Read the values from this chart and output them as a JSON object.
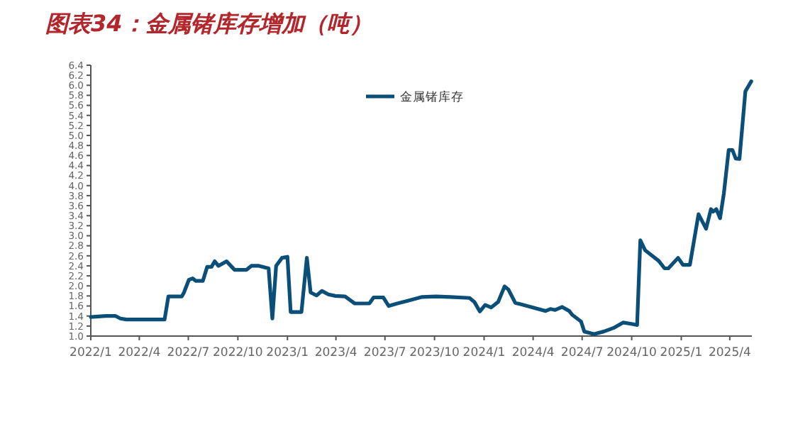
{
  "chart_data": {
    "type": "line",
    "title": "图表34：金属锗库存增加（吨）",
    "legend": "top",
    "xlim": [
      "2022-01-01",
      "2025-05-12"
    ],
    "xticks": [
      {
        "value": "2022-01-01",
        "label": "2022/1"
      },
      {
        "value": "2022-04-01",
        "label": "2022/4"
      },
      {
        "value": "2022-07-01",
        "label": "2022/7"
      },
      {
        "value": "2022-10-01",
        "label": "2022/10"
      },
      {
        "value": "2023-01-01",
        "label": "2023/1"
      },
      {
        "value": "2023-04-01",
        "label": "2023/4"
      },
      {
        "value": "2023-07-01",
        "label": "2023/7"
      },
      {
        "value": "2023-10-01",
        "label": "2023/10"
      },
      {
        "value": "2024-01-01",
        "label": "2024/1"
      },
      {
        "value": "2024-04-01",
        "label": "2024/4"
      },
      {
        "value": "2024-07-01",
        "label": "2024/7"
      },
      {
        "value": "2024-10-01",
        "label": "2024/10"
      },
      {
        "value": "2025-01-01",
        "label": "2025/1"
      },
      {
        "value": "2025-04-01",
        "label": "2025/4"
      }
    ],
    "ylim": [
      1.0,
      6.4
    ],
    "yticks": [
      {
        "value": 1.0,
        "label": "1.0"
      },
      {
        "value": 1.2,
        "label": "1.2"
      },
      {
        "value": 1.4,
        "label": "1.4"
      },
      {
        "value": 1.6,
        "label": "1.6"
      },
      {
        "value": 1.8,
        "label": "1.8"
      },
      {
        "value": 2.0,
        "label": "2.0"
      },
      {
        "value": 2.2,
        "label": "2.2"
      },
      {
        "value": 2.4,
        "label": "2.4"
      },
      {
        "value": 2.6,
        "label": "2.6"
      },
      {
        "value": 2.8,
        "label": "2.8"
      },
      {
        "value": 3.0,
        "label": "3.0"
      },
      {
        "value": 3.2,
        "label": "3.2"
      },
      {
        "value": 3.4,
        "label": "3.4"
      },
      {
        "value": 3.6,
        "label": "3.6"
      },
      {
        "value": 3.8,
        "label": "3.8"
      },
      {
        "value": 4.0,
        "label": "4.0"
      },
      {
        "value": 4.2,
        "label": "4.2"
      },
      {
        "value": 4.4,
        "label": "4.4"
      },
      {
        "value": 4.6,
        "label": "4.6"
      },
      {
        "value": 4.8,
        "label": "4.8"
      },
      {
        "value": 5.0,
        "label": "5.0"
      },
      {
        "value": 5.2,
        "label": "5.2"
      },
      {
        "value": 5.4,
        "label": "5.4"
      },
      {
        "value": 5.6,
        "label": "5.6"
      },
      {
        "value": 5.8,
        "label": "5.8"
      },
      {
        "value": 6.0,
        "label": "6.0"
      },
      {
        "value": 6.2,
        "label": "6.2"
      },
      {
        "value": 6.4,
        "label": "6.4"
      }
    ],
    "series": [
      {
        "name": "金属锗库存",
        "color": "#0b4f79",
        "x": [
          "2022-01-01",
          "2022-01-29",
          "2022-02-16",
          "2022-02-25",
          "2022-03-08",
          "2022-05-18",
          "2022-05-25",
          "2022-06-19",
          "2022-06-23",
          "2022-07-02",
          "2022-07-09",
          "2022-07-15",
          "2022-07-28",
          "2022-08-05",
          "2022-08-13",
          "2022-08-19",
          "2022-08-26",
          "2022-09-10",
          "2022-09-25",
          "2022-10-17",
          "2022-10-26",
          "2022-11-09",
          "2022-11-27",
          "2022-12-04",
          "2022-12-11",
          "2022-12-22",
          "2023-01-01",
          "2023-01-07",
          "2023-01-27",
          "2023-02-06",
          "2023-02-13",
          "2023-02-24",
          "2023-03-06",
          "2023-03-18",
          "2023-03-31",
          "2023-04-18",
          "2023-05-06",
          "2023-06-02",
          "2023-06-10",
          "2023-06-28",
          "2023-07-08",
          "2023-07-24",
          "2023-08-11",
          "2023-09-08",
          "2023-10-04",
          "2023-10-30",
          "2023-12-05",
          "2023-12-14",
          "2023-12-24",
          "2024-01-03",
          "2024-01-14",
          "2024-01-27",
          "2024-02-08",
          "2024-02-15",
          "2024-02-28",
          "2024-03-11",
          "2024-03-28",
          "2024-04-24",
          "2024-05-03",
          "2024-05-12",
          "2024-05-25",
          "2024-06-07",
          "2024-06-13",
          "2024-06-29",
          "2024-07-05",
          "2024-07-23",
          "2024-08-10",
          "2024-08-28",
          "2024-09-15",
          "2024-10-02",
          "2024-10-11",
          "2024-10-17",
          "2024-10-26",
          "2024-11-20",
          "2024-12-01",
          "2024-12-08",
          "2024-12-26",
          "2025-01-04",
          "2025-01-17",
          "2025-02-02",
          "2025-02-16",
          "2025-02-25",
          "2025-03-01",
          "2025-03-07",
          "2025-03-14",
          "2025-03-21",
          "2025-03-30",
          "2025-04-06",
          "2025-04-12",
          "2025-04-19",
          "2025-04-30",
          "2025-05-11"
        ],
        "values": [
          1.38,
          1.4,
          1.4,
          1.35,
          1.33,
          1.33,
          1.79,
          1.79,
          1.87,
          2.12,
          2.15,
          2.1,
          2.1,
          2.38,
          2.38,
          2.49,
          2.4,
          2.49,
          2.32,
          2.32,
          2.4,
          2.4,
          2.35,
          1.35,
          2.4,
          2.56,
          2.58,
          1.48,
          1.48,
          2.56,
          1.87,
          1.81,
          1.9,
          1.83,
          1.8,
          1.79,
          1.65,
          1.65,
          1.77,
          1.77,
          1.6,
          1.65,
          1.7,
          1.78,
          1.79,
          1.78,
          1.76,
          1.68,
          1.49,
          1.62,
          1.57,
          1.68,
          1.99,
          1.93,
          1.66,
          1.63,
          1.58,
          1.5,
          1.54,
          1.52,
          1.58,
          1.5,
          1.42,
          1.29,
          1.09,
          1.04,
          1.09,
          1.16,
          1.27,
          1.24,
          1.22,
          2.91,
          2.71,
          2.5,
          2.35,
          2.35,
          2.56,
          2.42,
          2.42,
          3.43,
          3.14,
          3.53,
          3.48,
          3.53,
          3.35,
          3.84,
          4.71,
          4.71,
          4.54,
          4.53,
          5.88,
          6.08
        ]
      }
    ]
  }
}
